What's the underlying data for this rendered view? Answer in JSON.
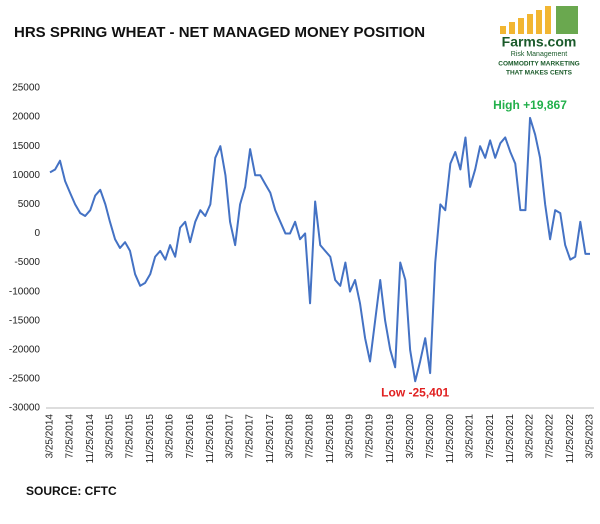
{
  "chart_data": {
    "type": "line",
    "title": "HRS SPRING WHEAT - NET MANAGED MONEY POSITION",
    "source": "SOURCE: CFTC",
    "logo": {
      "name": "Farms.com",
      "sub": "Risk Management",
      "tag1": "COMMODITY MARKETING",
      "tag2": "THAT MAKES CENTS"
    },
    "x": [
      "3/25/2014",
      "4/25/2014",
      "5/25/2014",
      "6/25/2014",
      "7/25/2014",
      "8/25/2014",
      "9/25/2014",
      "10/25/2014",
      "11/25/2014",
      "12/25/2014",
      "1/25/2015",
      "2/25/2015",
      "3/25/2015",
      "4/25/2015",
      "5/25/2015",
      "6/25/2015",
      "7/25/2015",
      "8/25/2015",
      "9/25/2015",
      "10/25/2015",
      "11/25/2015",
      "12/25/2015",
      "1/25/2016",
      "2/25/2016",
      "3/25/2016",
      "4/25/2016",
      "5/25/2016",
      "6/25/2016",
      "7/25/2016",
      "8/25/2016",
      "9/25/2016",
      "10/25/2016",
      "11/25/2016",
      "12/25/2016",
      "1/25/2017",
      "2/25/2017",
      "3/25/2017",
      "4/25/2017",
      "5/25/2017",
      "6/25/2017",
      "7/25/2017",
      "8/25/2017",
      "9/25/2017",
      "10/25/2017",
      "11/25/2017",
      "12/25/2017",
      "1/25/2018",
      "2/25/2018",
      "3/25/2018",
      "4/25/2018",
      "5/25/2018",
      "6/25/2018",
      "7/25/2018",
      "8/25/2018",
      "9/25/2018",
      "10/25/2018",
      "11/25/2018",
      "12/25/2018",
      "1/25/2019",
      "2/25/2019",
      "3/25/2019",
      "4/25/2019",
      "5/25/2019",
      "6/25/2019",
      "7/25/2019",
      "8/25/2019",
      "9/25/2019",
      "10/25/2019",
      "11/25/2019",
      "12/25/2019",
      "1/25/2020",
      "2/25/2020",
      "3/25/2020",
      "4/25/2020",
      "5/25/2020",
      "6/25/2020",
      "7/25/2020",
      "8/25/2020",
      "9/25/2020",
      "10/25/2020",
      "11/25/2020",
      "12/25/2020",
      "1/25/2021",
      "2/25/2021",
      "3/25/2021",
      "4/25/2021",
      "5/25/2021",
      "6/25/2021",
      "7/25/2021",
      "8/25/2021",
      "9/25/2021",
      "10/25/2021",
      "11/25/2021",
      "12/25/2021",
      "1/25/2022",
      "2/25/2022",
      "3/25/2022",
      "4/25/2022",
      "5/25/2022",
      "6/25/2022",
      "7/25/2022",
      "8/25/2022",
      "9/25/2022",
      "10/25/2022",
      "11/25/2022",
      "12/25/2022",
      "1/25/2023",
      "2/25/2023",
      "3/25/2023"
    ],
    "series": [
      {
        "color": "#4472c4",
        "values": [
          10500,
          11000,
          12500,
          9000,
          7000,
          5000,
          3500,
          3000,
          4000,
          6500,
          7500,
          5000,
          2000,
          -1000,
          -2500,
          -1500,
          -3000,
          -7000,
          -9000,
          -8500,
          -7000,
          -4000,
          -3000,
          -4500,
          -2000,
          -4000,
          1000,
          2000,
          -1500,
          2000,
          4000,
          3000,
          5000,
          13000,
          15000,
          10000,
          2000,
          -2000,
          5000,
          8000,
          14500,
          10000,
          10000,
          8500,
          7000,
          4000,
          2000,
          0,
          0,
          2000,
          -1000,
          0,
          -12000,
          5500,
          -2000,
          -3000,
          -4000,
          -8000,
          -9000,
          -5000,
          -10000,
          -8000,
          -12000,
          -18000,
          -22000,
          -15000,
          -8000,
          -15000,
          -20000,
          -23000,
          -5000,
          -8000,
          -20000,
          -25401,
          -22000,
          -18000,
          -24000,
          -5000,
          5000,
          4000,
          12000,
          14000,
          11000,
          16500,
          8000,
          11000,
          15000,
          13000,
          16000,
          13000,
          15500,
          16500,
          14000,
          12000,
          4000,
          4000,
          19867,
          17000,
          13000,
          5000,
          -1000,
          4000,
          3500,
          -2000,
          -4500,
          -4000,
          2000,
          -3500,
          -3500
        ]
      }
    ],
    "xticks": [
      "3/25/2014",
      "7/25/2014",
      "11/25/2014",
      "3/25/2015",
      "7/25/2015",
      "11/25/2015",
      "3/25/2016",
      "7/25/2016",
      "11/25/2016",
      "3/25/2017",
      "7/25/2017",
      "11/25/2017",
      "3/25/2018",
      "7/25/2018",
      "11/25/2018",
      "3/25/2019",
      "7/25/2019",
      "11/25/2019",
      "3/25/2020",
      "7/25/2020",
      "11/25/2020",
      "3/25/2021",
      "7/25/2021",
      "11/25/2021",
      "3/25/2022",
      "7/25/2022",
      "11/25/2022",
      "3/25/2023"
    ],
    "ylim": [
      -30000,
      25000
    ],
    "yticks": [
      -30000,
      -25000,
      -20000,
      -15000,
      -10000,
      -5000,
      0,
      5000,
      10000,
      15000,
      20000,
      25000
    ],
    "annotations": [
      {
        "text": "High +19,867",
        "x": "3/25/2022",
        "y": 19867,
        "color": "#22b04b"
      },
      {
        "text": "Low -25,401",
        "x": "4/25/2020",
        "y": -25401,
        "color": "#e02020"
      }
    ]
  }
}
